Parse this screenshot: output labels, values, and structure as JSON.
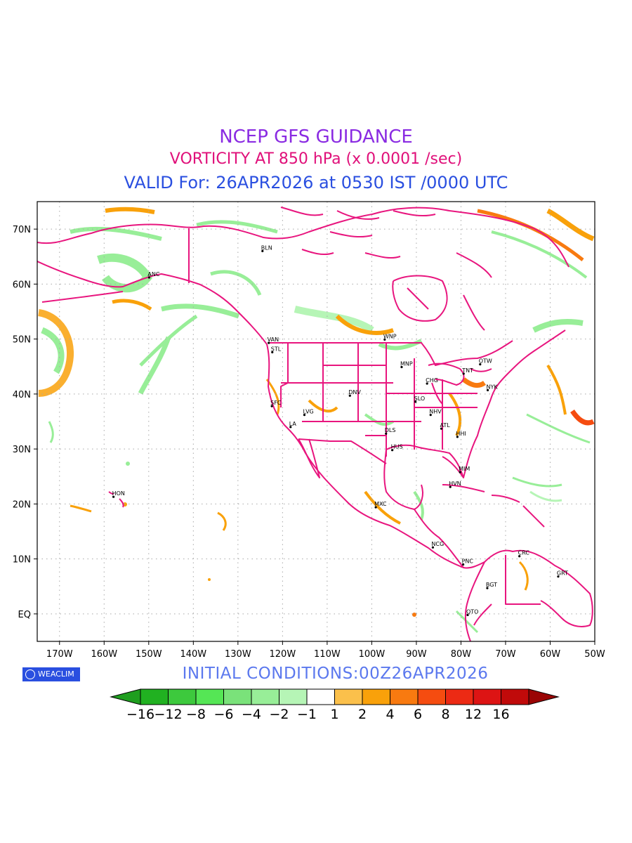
{
  "header": {
    "title": "NCEP GFS GUIDANCE",
    "subtitle": "VORTICITY AT 850 hPa (x 0.0001 /sec)",
    "valid": "VALID For: 26APR2026 at 0530 IST /0000 UTC"
  },
  "map": {
    "lon_range": [
      -175,
      -50
    ],
    "lat_range": [
      -5,
      75
    ],
    "x_ticks": [
      {
        "lon": -170,
        "label": "170W"
      },
      {
        "lon": -160,
        "label": "160W"
      },
      {
        "lon": -150,
        "label": "150W"
      },
      {
        "lon": -140,
        "label": "140W"
      },
      {
        "lon": -130,
        "label": "130W"
      },
      {
        "lon": -120,
        "label": "120W"
      },
      {
        "lon": -110,
        "label": "110W"
      },
      {
        "lon": -100,
        "label": "100W"
      },
      {
        "lon": -90,
        "label": "90W"
      },
      {
        "lon": -80,
        "label": "80W"
      },
      {
        "lon": -70,
        "label": "70W"
      },
      {
        "lon": -60,
        "label": "60W"
      },
      {
        "lon": -50,
        "label": "50W"
      }
    ],
    "y_ticks": [
      {
        "lat": 70,
        "label": "70N"
      },
      {
        "lat": 60,
        "label": "60N"
      },
      {
        "lat": 50,
        "label": "50N"
      },
      {
        "lat": 40,
        "label": "40N"
      },
      {
        "lat": 30,
        "label": "30N"
      },
      {
        "lat": 20,
        "label": "20N"
      },
      {
        "lat": 10,
        "label": "10N"
      },
      {
        "lat": 0,
        "label": "EQ"
      }
    ],
    "grid": true,
    "coast_color": "#e8157e",
    "cities": [
      {
        "name": "ANC",
        "lon": -149.9,
        "lat": 61.2
      },
      {
        "name": "BLN",
        "lon": -124.5,
        "lat": 66.0
      },
      {
        "name": "VAN",
        "lon": -123.1,
        "lat": 49.3
      },
      {
        "name": "STL",
        "lon": -122.3,
        "lat": 47.6
      },
      {
        "name": "WNP",
        "lon": -97.1,
        "lat": 49.9
      },
      {
        "name": "MNP",
        "lon": -93.3,
        "lat": 44.9
      },
      {
        "name": "OTW",
        "lon": -75.7,
        "lat": 45.4
      },
      {
        "name": "TNT",
        "lon": -79.4,
        "lat": 43.7
      },
      {
        "name": "CHG",
        "lon": -87.6,
        "lat": 41.9
      },
      {
        "name": "NYK",
        "lon": -74.0,
        "lat": 40.7
      },
      {
        "name": "DNV",
        "lon": -104.9,
        "lat": 39.7
      },
      {
        "name": "SLO",
        "lon": -90.2,
        "lat": 38.6
      },
      {
        "name": "SFC",
        "lon": -122.4,
        "lat": 37.8
      },
      {
        "name": "LVG",
        "lon": -115.1,
        "lat": 36.2
      },
      {
        "name": "LA",
        "lon": -118.2,
        "lat": 34.0
      },
      {
        "name": "NHV",
        "lon": -86.8,
        "lat": 36.2
      },
      {
        "name": "ATL",
        "lon": -84.4,
        "lat": 33.7
      },
      {
        "name": "HHI",
        "lon": -80.8,
        "lat": 32.2
      },
      {
        "name": "DLS",
        "lon": -96.8,
        "lat": 32.8
      },
      {
        "name": "HUS",
        "lon": -95.4,
        "lat": 29.8
      },
      {
        "name": "MIM",
        "lon": -80.2,
        "lat": 25.8
      },
      {
        "name": "HVN",
        "lon": -82.4,
        "lat": 23.1
      },
      {
        "name": "HON",
        "lon": -157.9,
        "lat": 21.3
      },
      {
        "name": "MXC",
        "lon": -99.1,
        "lat": 19.4
      },
      {
        "name": "NCG",
        "lon": -86.3,
        "lat": 12.1
      },
      {
        "name": "PNC",
        "lon": -79.5,
        "lat": 9.0
      },
      {
        "name": "CRC",
        "lon": -66.9,
        "lat": 10.5
      },
      {
        "name": "GRT",
        "lon": -58.2,
        "lat": 6.8
      },
      {
        "name": "BGT",
        "lon": -74.1,
        "lat": 4.7
      },
      {
        "name": "QTO",
        "lon": -78.5,
        "lat": -0.2
      }
    ]
  },
  "branding": {
    "badge_text": "WEACLIM",
    "badge_icon": "copyright-circle-icon"
  },
  "initial_conditions": "INITIAL  CONDITIONS:00Z26APR2026",
  "colorbar": {
    "colors": [
      "#1f9e1f",
      "#21b121",
      "#3dc93d",
      "#55e655",
      "#7ae27a",
      "#98ee98",
      "#b6f5b6",
      "#ffffff",
      "#fbc04b",
      "#f9a10a",
      "#f87a10",
      "#f54c10",
      "#ec2a14",
      "#dd1414",
      "#c00a0a",
      "#9a0505"
    ],
    "labels": [
      "-16",
      "-12",
      "-8",
      "-6",
      "-4",
      "-2",
      "-1",
      "1",
      "2",
      "4",
      "6",
      "8",
      "12",
      "16"
    ]
  }
}
